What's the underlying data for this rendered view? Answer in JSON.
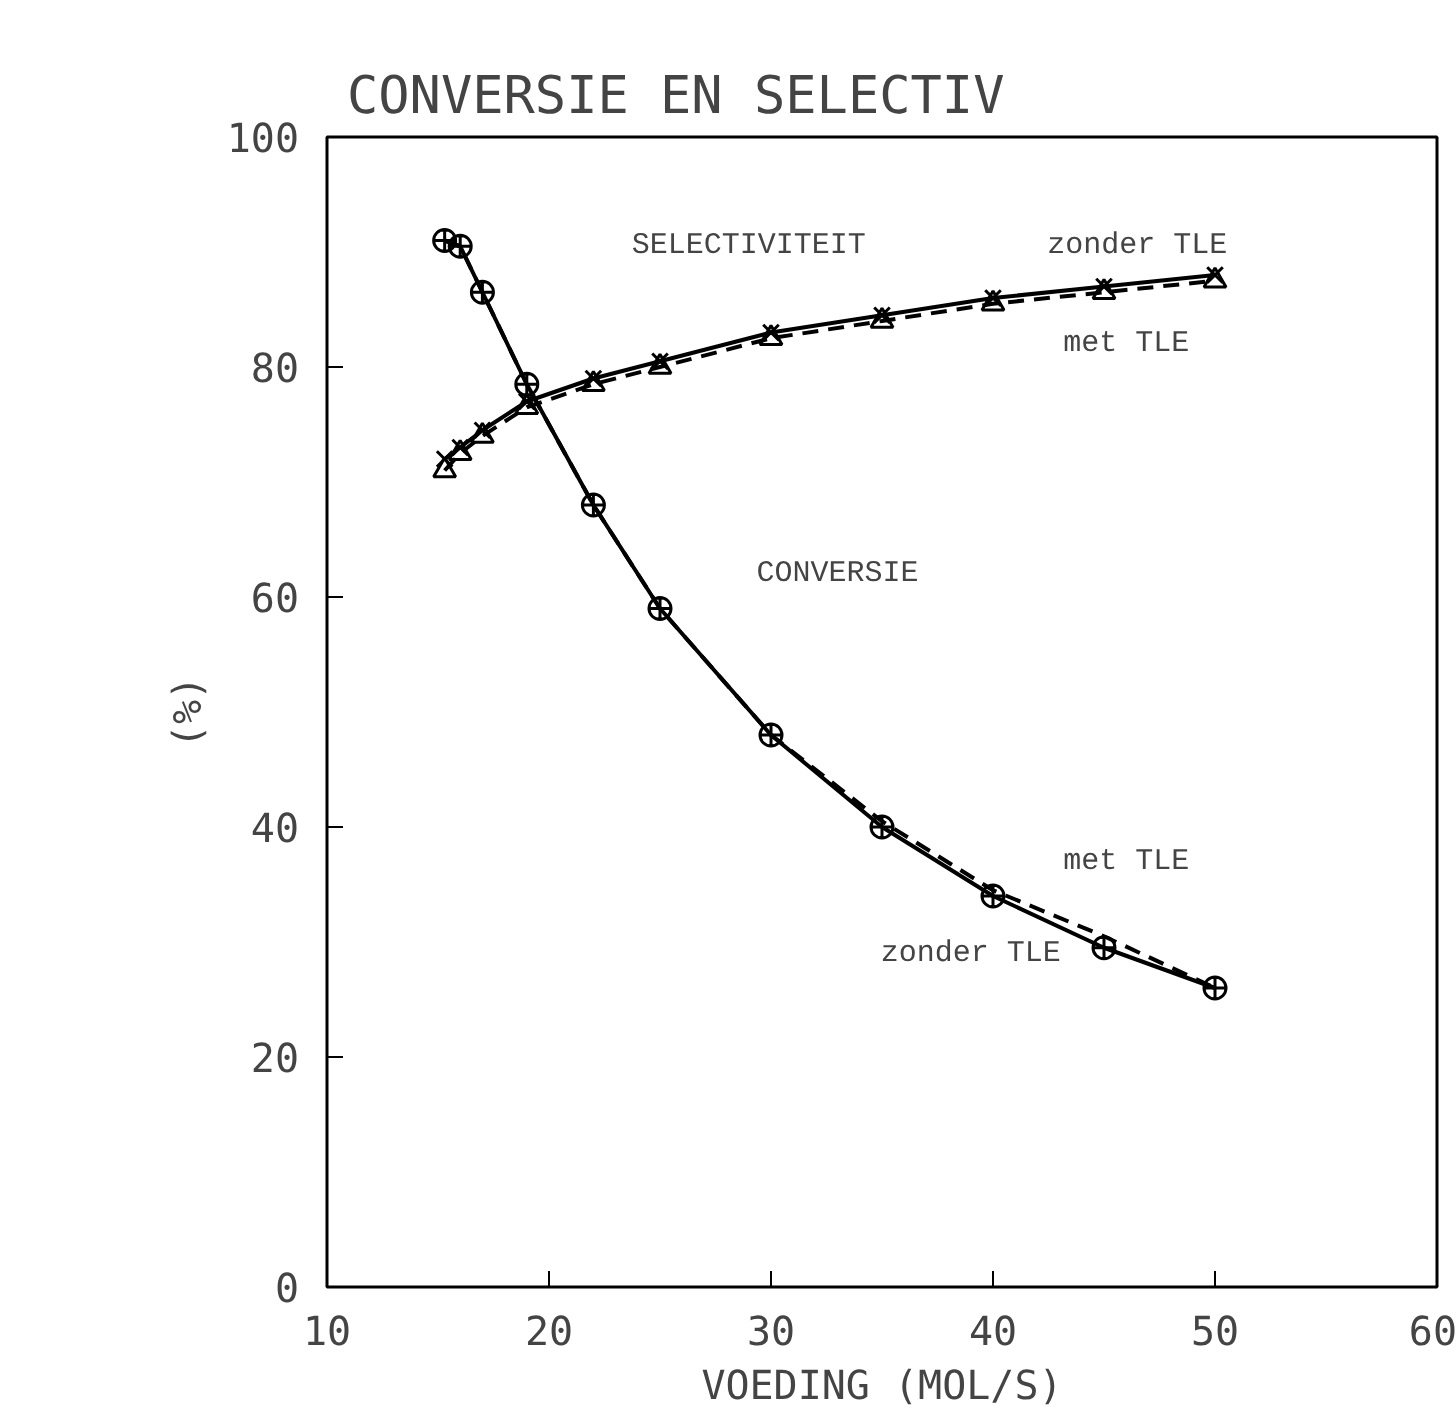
{
  "chart_data": {
    "type": "line",
    "title": "CONVERSIE EN SELECTIV",
    "xlabel": "VOEDING (MOL/S)",
    "ylabel": "(%)",
    "xlim": [
      10,
      60
    ],
    "xticks": [
      10,
      20,
      30,
      40,
      50,
      60
    ],
    "ylim": [
      0,
      100
    ],
    "yticks": [
      0,
      20,
      40,
      60,
      80,
      100
    ],
    "grid": false,
    "series": [
      {
        "color": "#000000",
        "marker": "circle",
        "line_style": "solid",
        "x": [
          15.3,
          16,
          17,
          19,
          22,
          25,
          30,
          35,
          40,
          45,
          50
        ],
        "values": [
          91,
          90.5,
          86.5,
          78.5,
          68,
          59,
          48,
          40,
          34,
          29.5,
          26
        ]
      },
      {
        "color": "#000000",
        "marker": "none",
        "line_style": "dashed",
        "x": [
          15.3,
          16,
          17,
          19,
          22,
          25,
          30,
          35,
          40,
          45,
          50
        ],
        "values": [
          91,
          90.5,
          86.5,
          78.5,
          68,
          59,
          48,
          40.5,
          34.5,
          30.5,
          26
        ]
      },
      {
        "color": "#000000",
        "marker": "cross",
        "line_style": "solid",
        "x": [
          15.3,
          16,
          17,
          19,
          22,
          25,
          30,
          35,
          40,
          45,
          50
        ],
        "values": [
          72,
          73,
          74.5,
          77,
          79,
          80.5,
          83,
          84.5,
          86,
          87,
          88
        ]
      },
      {
        "color": "#000000",
        "marker": "triangle",
        "line_style": "dashed",
        "x": [
          15.3,
          16,
          17,
          19,
          22,
          25,
          30,
          35,
          40,
          45,
          50
        ],
        "values": [
          71,
          72.5,
          74,
          76.5,
          78.5,
          80,
          82.5,
          84,
          85.5,
          86.5,
          87.5
        ]
      }
    ],
    "annotations": [
      "SELECTIVITEIT",
      "zonder TLE",
      "met TLE",
      "CONVERSIE",
      "met TLE",
      "zonder TLE"
    ]
  }
}
